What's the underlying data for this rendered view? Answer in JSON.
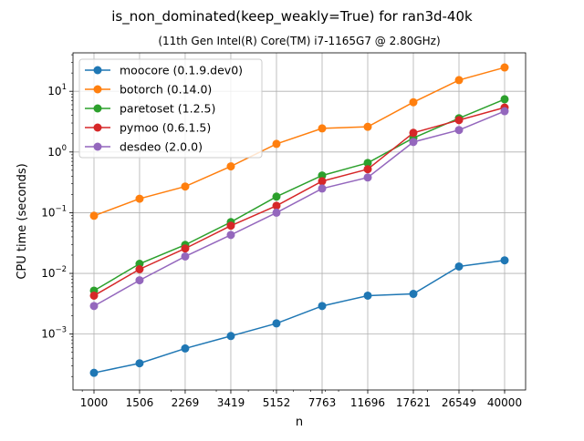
{
  "chart_data": {
    "type": "line",
    "title": "is_non_dominated(keep_weakly=True) for ran3d-40k",
    "subtitle": "(11th Gen Intel(R) Core(TM) i7-1165G7 @ 2.80GHz)",
    "xlabel": "n",
    "ylabel": "CPU time (seconds)",
    "xscale": "log",
    "yscale": "log",
    "x": [
      1000,
      1506,
      2269,
      3419,
      5152,
      7763,
      11696,
      17621,
      26549,
      40000
    ],
    "x_tick_labels": [
      "1000",
      "1506",
      "2269",
      "3419",
      "5152",
      "7763",
      "11696",
      "17621",
      "26549",
      "40000"
    ],
    "y_ticks": [
      {
        "value": 0.001,
        "base": "10",
        "exp": "−3"
      },
      {
        "value": 0.01,
        "base": "10",
        "exp": "−2"
      },
      {
        "value": 0.1,
        "base": "10",
        "exp": "−1"
      },
      {
        "value": 1,
        "base": "10",
        "exp": "0"
      },
      {
        "value": 10,
        "base": "10",
        "exp": "1"
      }
    ],
    "ylim": [
      0.00012,
      43
    ],
    "grid": true,
    "legend_position": "top-left",
    "series": [
      {
        "name": "moocore (0.1.9.dev0)",
        "color": "#1f77b4",
        "values": [
          0.00023,
          0.00033,
          0.00058,
          0.00093,
          0.0015,
          0.0029,
          0.0043,
          0.0046,
          0.013,
          0.0164
        ]
      },
      {
        "name": "botorch (0.14.0)",
        "color": "#ff7f0e",
        "values": [
          0.089,
          0.17,
          0.27,
          0.58,
          1.36,
          2.45,
          2.6,
          6.6,
          15.3,
          24.7
        ]
      },
      {
        "name": "paretoset (1.2.5)",
        "color": "#2ca02c",
        "values": [
          0.0052,
          0.0144,
          0.0295,
          0.07,
          0.184,
          0.41,
          0.66,
          1.7,
          3.6,
          7.4
        ]
      },
      {
        "name": "pymoo (0.6.1.5)",
        "color": "#d62728",
        "values": [
          0.0043,
          0.0117,
          0.0257,
          0.061,
          0.13,
          0.33,
          0.52,
          2.07,
          3.35,
          5.4
        ]
      },
      {
        "name": "desdeo (2.0.0)",
        "color": "#9467bd",
        "values": [
          0.0029,
          0.0077,
          0.019,
          0.043,
          0.1,
          0.25,
          0.38,
          1.46,
          2.3,
          4.7
        ]
      }
    ]
  }
}
